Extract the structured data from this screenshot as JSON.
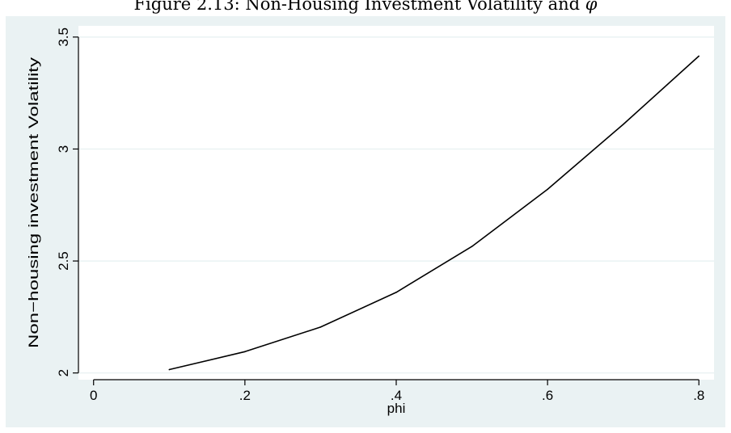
{
  "caption": "Figure 2.13: Non-Housing Investment Volatility and ",
  "caption_symbol": "φ",
  "colors": {
    "outer_background": "#eaf2f3",
    "plot_background": "#ffffff",
    "grid": "#eaf2f3",
    "line": "#000000",
    "axis": "#000000"
  },
  "chart_data": {
    "type": "line",
    "xlabel": "phi",
    "ylabel": "Non−housing investment Volatility",
    "xlim": [
      -0.02,
      0.82
    ],
    "ylim": [
      1.97,
      3.55
    ],
    "x_ticks": [
      0,
      0.2,
      0.4,
      0.6,
      0.8
    ],
    "x_tick_labels": [
      "0",
      ".2",
      ".4",
      ".6",
      ".8"
    ],
    "y_ticks": [
      2,
      2.5,
      3,
      3.5
    ],
    "y_tick_labels": [
      "2",
      "2.5",
      "3",
      "3.5"
    ],
    "grid": "horizontal",
    "legend": "none",
    "series": [
      {
        "x": [
          0.1,
          0.2,
          0.3,
          0.4,
          0.5,
          0.6,
          0.7,
          0.8
        ],
        "y": [
          2.015,
          2.095,
          2.205,
          2.36,
          2.565,
          2.82,
          3.11,
          3.415
        ]
      }
    ]
  }
}
